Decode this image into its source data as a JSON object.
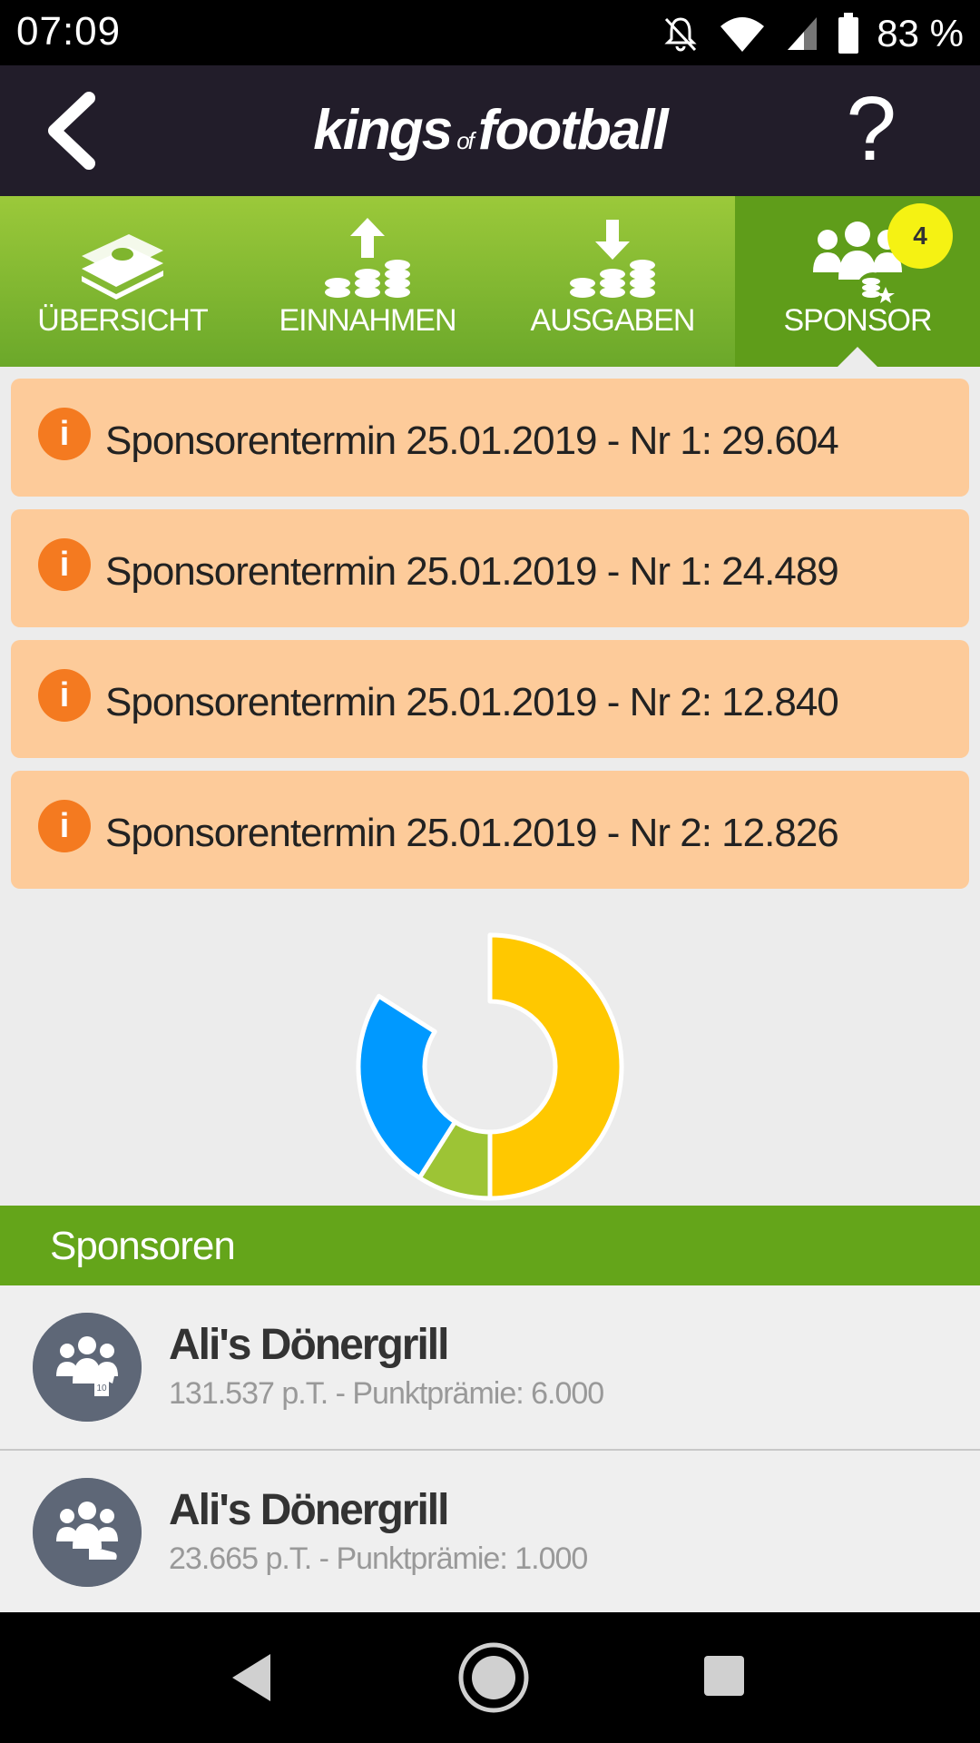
{
  "status_bar": {
    "time": "07:09",
    "battery": "83 %"
  },
  "app_bar": {
    "logo_left": "kings",
    "logo_of": "of",
    "logo_right": "football",
    "help": "?"
  },
  "tabs": [
    {
      "label": "ÜBERSICHT",
      "icon": "money-stack-icon"
    },
    {
      "label": "EINNAHMEN",
      "icon": "coins-up-icon"
    },
    {
      "label": "AUSGABEN",
      "icon": "coins-down-icon"
    },
    {
      "label": "SPONSOR",
      "icon": "sponsor-group-icon",
      "badge": "4",
      "active": true
    }
  ],
  "notices": [
    {
      "text": "Sponsorentermin 25.01.2019 - Nr 1: 29.604"
    },
    {
      "text": "Sponsorentermin 25.01.2019 - Nr 1: 24.489"
    },
    {
      "text": "Sponsorentermin 25.01.2019 - Nr 2: 12.840"
    },
    {
      "text": "Sponsorentermin 25.01.2019 - Nr 2: 12.826"
    }
  ],
  "notice_icon": "i",
  "chart_data": {
    "type": "pie",
    "categories": [
      "",
      "",
      ""
    ],
    "values": [
      50,
      9,
      25
    ],
    "colors": [
      "#ffc800",
      "#9dc435",
      "#0099ff"
    ]
  },
  "sponsors_header": "Sponsoren",
  "sponsors": [
    {
      "name": "Ali's Dönergrill",
      "detail": "131.537 p.T. - Punktprämie: 6.000",
      "icon": "group-jersey-icon"
    },
    {
      "name": "Ali's Dönergrill",
      "detail": "23.665 p.T. - Punktprämie: 1.000",
      "icon": "group-shoe-icon"
    }
  ]
}
